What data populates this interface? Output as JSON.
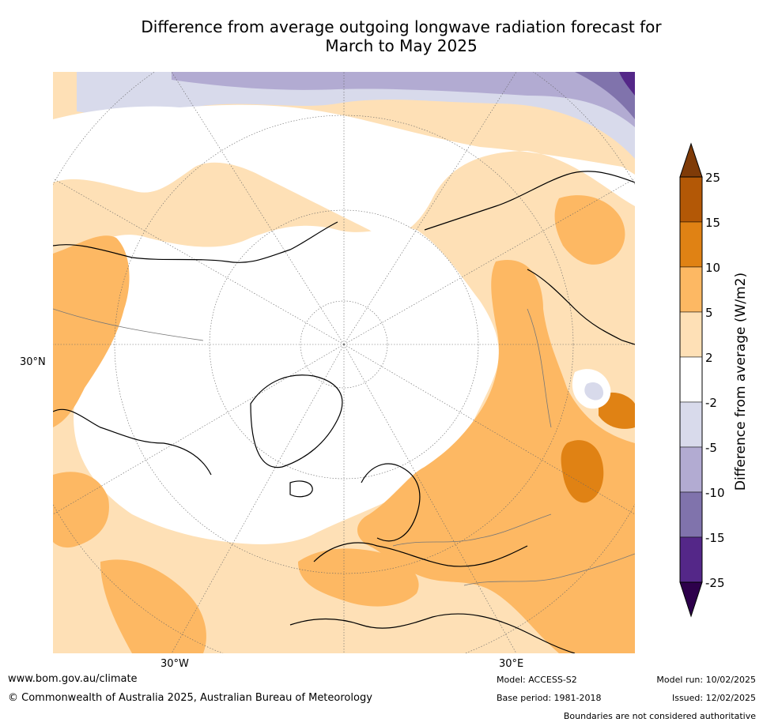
{
  "title_line1": "Difference from average outgoing longwave radiation forecast for",
  "title_line2": "March to May 2025",
  "lat_label": "30°N",
  "lon_labels": [
    "30°W",
    "30°E"
  ],
  "colorbar": {
    "title": "Difference from average (W/m2)",
    "ticks": [
      "25",
      "15",
      "10",
      "5",
      "2",
      "-2",
      "-5",
      "-10",
      "-15",
      "-25"
    ],
    "colors": {
      "gt25": "#7f3b08",
      "15_25": "#b35806",
      "10_15": "#e08214",
      "5_10": "#fdb863",
      "2_5": "#fee0b6",
      "m2_2": "#ffffff",
      "m5_m2": "#d8daeb",
      "m10_m5": "#b2abd2",
      "m15_m10": "#8073ac",
      "m25_m15": "#542788",
      "lt_m25": "#2d004b"
    }
  },
  "footer": {
    "website": "www.bom.gov.au/climate",
    "copyright": "© Commonwealth of Australia 2025, Australian Bureau of Meteorology",
    "model": "Model: ACCESS-S2",
    "base_period": "Base period: 1981-2018",
    "model_run": "Model run: 10/02/2025",
    "issued": "Issued: 12/02/2025",
    "disclaimer": "Boundaries are not considered authoritative"
  }
}
